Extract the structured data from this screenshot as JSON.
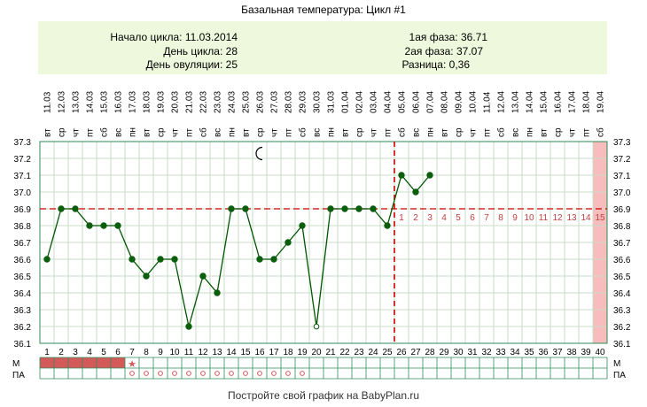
{
  "header": {
    "title": "Базальная температура: Цикл #1",
    "cycle_start": "Начало цикла: 11.03.2014",
    "cycle_day": "День цикла: 28",
    "ovulation_day": "День овуляции: 25",
    "phase1": "1ая фаза: 36.71",
    "phase2": "2ая фаза: 37.07",
    "difference": "Разница: 0,36"
  },
  "footer": {
    "text": "Постройте свой график на BabyPlan.ru"
  },
  "row_labels": {
    "m": "М",
    "pa": "ПА"
  },
  "chart_data": {
    "type": "line",
    "title": "Базальная температура: Цикл #1",
    "x": [
      1,
      2,
      3,
      4,
      5,
      6,
      7,
      8,
      9,
      10,
      11,
      12,
      13,
      14,
      15,
      16,
      17,
      18,
      19,
      20,
      21,
      22,
      23,
      24,
      25,
      26,
      27,
      28
    ],
    "y": [
      36.6,
      36.9,
      36.9,
      36.8,
      36.8,
      36.8,
      36.6,
      36.5,
      36.6,
      36.6,
      36.2,
      36.5,
      36.4,
      36.9,
      36.9,
      36.6,
      36.6,
      36.7,
      36.8,
      36.2,
      36.9,
      36.9,
      36.9,
      36.9,
      36.8,
      37.1,
      37.0,
      37.1
    ],
    "hollow_points": [
      20
    ],
    "days": 40,
    "ylim": [
      36.1,
      37.3
    ],
    "yticks": [
      "37.3",
      "37.2",
      "37.1",
      "37.0",
      "36.9",
      "36.8",
      "36.7",
      "36.6",
      "36.5",
      "36.4",
      "36.3",
      "36.2",
      "36.1"
    ],
    "dates": [
      "11.03",
      "12.03",
      "13.03",
      "14.03",
      "15.03",
      "16.03",
      "17.03",
      "18.03",
      "19.03",
      "20.03",
      "21.03",
      "22.03",
      "23.03",
      "24.03",
      "25.03",
      "26.03",
      "27.03",
      "28.03",
      "29.03",
      "30.03",
      "31.03",
      "01.04",
      "02.04",
      "03.04",
      "04.04",
      "05.04",
      "06.04",
      "07.04",
      "08.04",
      "09.04",
      "10.04",
      "11.04",
      "12.04",
      "13.04",
      "14.04",
      "15.04",
      "16.04",
      "17.04",
      "18.04",
      "19.04"
    ],
    "weekdays": [
      "вт",
      "ср",
      "чт",
      "пт",
      "сб",
      "вс",
      "пн",
      "вт",
      "ср",
      "чт",
      "пт",
      "сб",
      "вс",
      "пн",
      "вт",
      "ср",
      "чт",
      "пт",
      "сб",
      "вс",
      "пн",
      "вт",
      "ср",
      "чт",
      "пт",
      "сб",
      "вс",
      "пн",
      "вт",
      "ср",
      "чт",
      "пт",
      "сб",
      "вс",
      "пн",
      "вт",
      "ср",
      "чт",
      "пт",
      "сб"
    ],
    "coverline": 36.9,
    "ovulation_day": 25,
    "luteal_numbers": [
      "1",
      "2",
      "3",
      "4",
      "5",
      "6",
      "7",
      "8",
      "9",
      "10",
      "11",
      "12",
      "13",
      "14",
      "15"
    ],
    "highlight_day": 40,
    "moon_day": 16,
    "moon_value": 37.25,
    "menstruation_days": [
      1,
      2,
      3,
      4,
      5,
      6
    ],
    "menstruation_star_day": 7,
    "pa_circle_days": [
      7,
      8,
      9,
      10,
      11,
      12,
      13,
      14,
      15,
      16,
      17,
      18,
      19
    ],
    "colors": {
      "line": "#005500",
      "point": "#0b5e0b",
      "coverline": "#cc0000",
      "luteal_number": "#c04040",
      "header_bg": "#eef8dc",
      "highlight": "#f7bdbd",
      "menstruation": "#d45a5a",
      "grid": "#2e8b57",
      "grid_inner": "#c8dcc8"
    }
  }
}
